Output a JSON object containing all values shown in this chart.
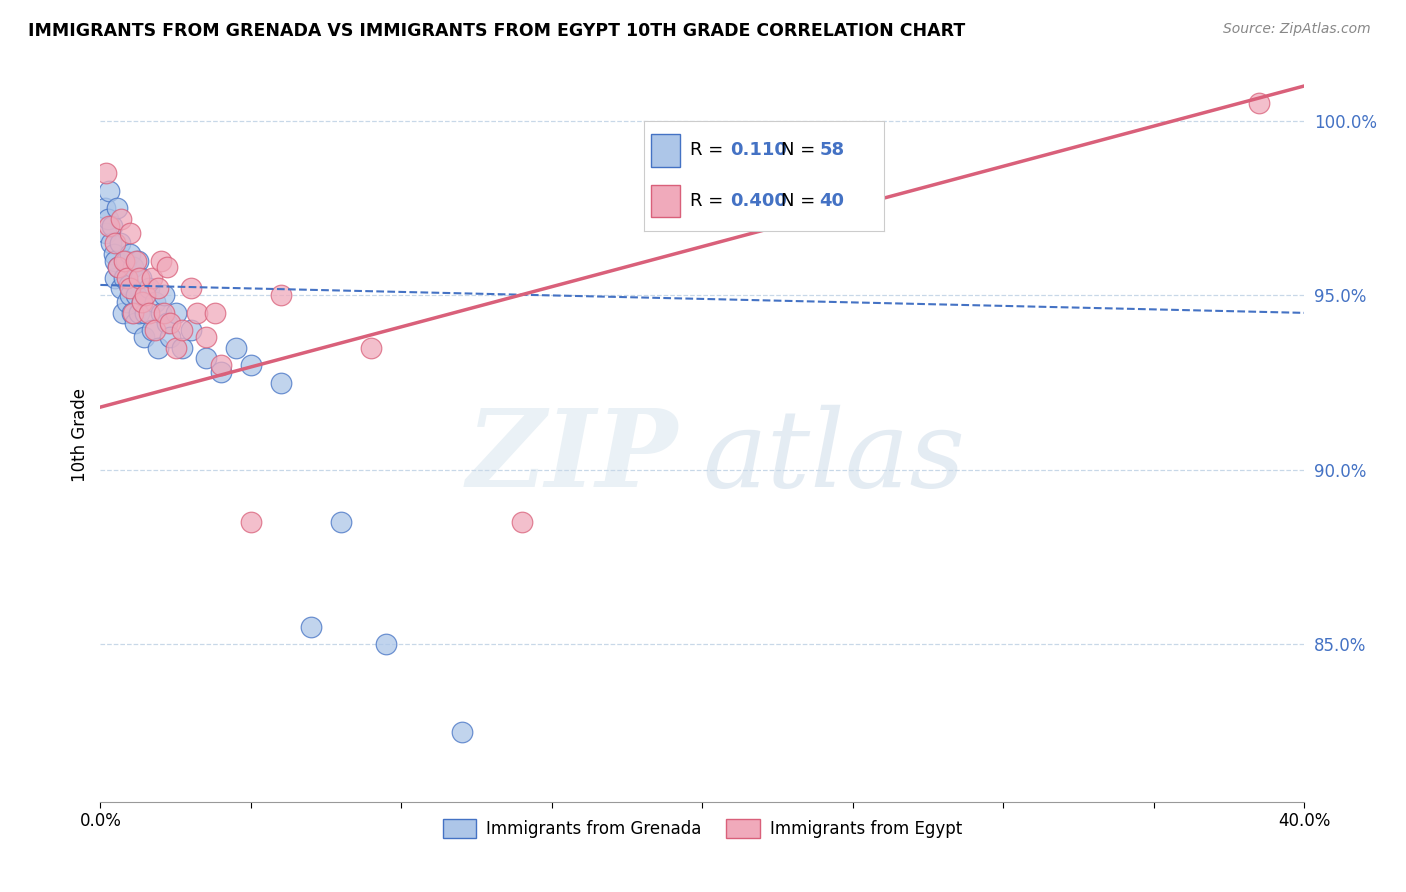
{
  "title": "IMMIGRANTS FROM GRENADA VS IMMIGRANTS FROM EGYPT 10TH GRADE CORRELATION CHART",
  "source": "Source: ZipAtlas.com",
  "ylabel": "10th Grade",
  "xlim": [
    0.0,
    40.0
  ],
  "ylim": [
    80.5,
    101.5
  ],
  "yticks": [
    85.0,
    90.0,
    95.0,
    100.0
  ],
  "ytick_labels": [
    "85.0%",
    "90.0%",
    "95.0%",
    "100.0%"
  ],
  "xticks": [
    0.0,
    5.0,
    10.0,
    15.0,
    20.0,
    25.0,
    30.0,
    35.0,
    40.0
  ],
  "xtick_labels": [
    "0.0%",
    "",
    "",
    "",
    "",
    "",
    "",
    "",
    "40.0%"
  ],
  "legend_label1": "Immigrants from Grenada",
  "legend_label2": "Immigrants from Egypt",
  "series1_color": "#adc6e8",
  "series2_color": "#f0aabb",
  "trendline1_color": "#4472c4",
  "trendline2_color": "#d9607a",
  "trendline1_dash": "--",
  "trendline2_dash": "-",
  "grenada_trendline": [
    95.3,
    94.5
  ],
  "egypt_trendline": [
    91.8,
    101.0
  ],
  "grenada_x": [
    0.15,
    0.2,
    0.25,
    0.3,
    0.35,
    0.4,
    0.45,
    0.5,
    0.5,
    0.55,
    0.6,
    0.65,
    0.7,
    0.75,
    0.8,
    0.85,
    0.9,
    0.95,
    1.0,
    1.0,
    1.05,
    1.1,
    1.15,
    1.2,
    1.25,
    1.3,
    1.35,
    1.4,
    1.45,
    1.5,
    1.6,
    1.7,
    1.8,
    1.9,
    2.0,
    2.1,
    2.2,
    2.3,
    2.5,
    2.7,
    3.0,
    3.5,
    4.0,
    4.5,
    5.0,
    6.0,
    7.0,
    8.0,
    9.5,
    12.0
  ],
  "grenada_y": [
    97.5,
    96.8,
    97.2,
    98.0,
    96.5,
    97.0,
    96.2,
    95.5,
    96.0,
    97.5,
    95.8,
    96.5,
    95.2,
    94.5,
    95.5,
    96.0,
    94.8,
    95.3,
    95.0,
    96.2,
    94.5,
    95.8,
    94.2,
    95.0,
    96.0,
    94.5,
    95.5,
    94.8,
    93.8,
    94.5,
    95.2,
    94.0,
    94.8,
    93.5,
    94.5,
    95.0,
    94.2,
    93.8,
    94.5,
    93.5,
    94.0,
    93.2,
    92.8,
    93.5,
    93.0,
    92.5,
    85.5,
    88.5,
    85.0,
    82.5
  ],
  "egypt_x": [
    0.2,
    0.3,
    0.5,
    0.6,
    0.7,
    0.8,
    0.9,
    1.0,
    1.0,
    1.1,
    1.2,
    1.3,
    1.4,
    1.5,
    1.6,
    1.7,
    1.8,
    1.9,
    2.0,
    2.1,
    2.2,
    2.3,
    2.5,
    2.7,
    3.0,
    3.2,
    3.5,
    3.8,
    4.0,
    5.0,
    6.0,
    9.0,
    14.0,
    38.5
  ],
  "egypt_y": [
    98.5,
    97.0,
    96.5,
    95.8,
    97.2,
    96.0,
    95.5,
    96.8,
    95.2,
    94.5,
    96.0,
    95.5,
    94.8,
    95.0,
    94.5,
    95.5,
    94.0,
    95.2,
    96.0,
    94.5,
    95.8,
    94.2,
    93.5,
    94.0,
    95.2,
    94.5,
    93.8,
    94.5,
    93.0,
    88.5,
    95.0,
    93.5,
    88.5,
    100.5
  ]
}
